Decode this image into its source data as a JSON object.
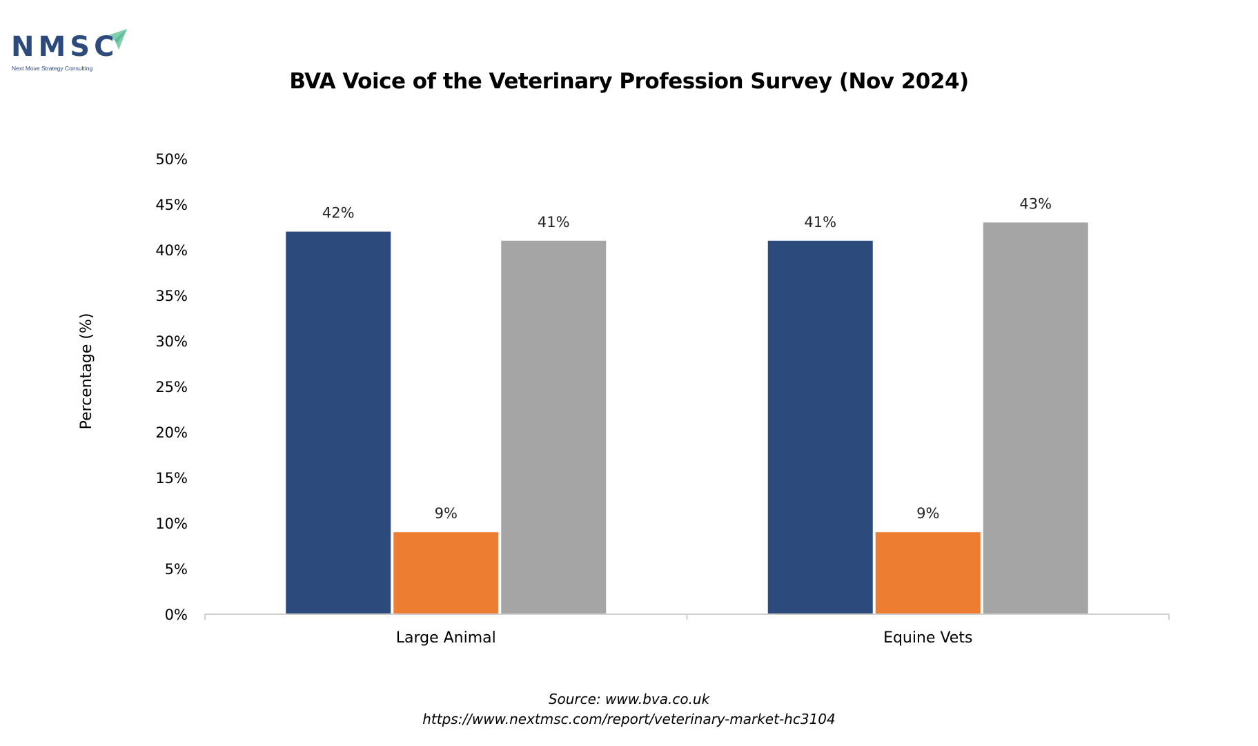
{
  "logo": {
    "text": "NMSC",
    "subtitle": "Next Move Strategy Consulting",
    "colors": {
      "text": "#2c4a7c",
      "arrow": "#7fcfae"
    }
  },
  "source": {
    "line1": "Source: www.bva.co.uk",
    "line2": "https://www.nextmsc.com/report/veterinary-market-hc3104"
  },
  "chart_data": {
    "type": "bar",
    "title": "BVA Voice of the Veterinary Profession Survey (Nov 2024)",
    "ylabel": "Percentage (%)",
    "xlabel": "",
    "categories": [
      "Large Animal",
      "Equine Vets"
    ],
    "ylim": [
      0,
      50
    ],
    "yticks": [
      0,
      5,
      10,
      15,
      20,
      25,
      30,
      35,
      40,
      45,
      50
    ],
    "ytick_labels": [
      "0%",
      "5%",
      "10%",
      "15%",
      "20%",
      "25%",
      "30%",
      "35%",
      "40%",
      "45%",
      "50%"
    ],
    "grid": false,
    "legend": "none",
    "series": [
      {
        "color": "#2d4a7d",
        "values": [
          42,
          41
        ],
        "labels": [
          "42%",
          "41%"
        ]
      },
      {
        "color": "#ed7d31",
        "values": [
          9,
          9
        ],
        "labels": [
          "9%",
          "9%"
        ]
      },
      {
        "color": "#a5a5a5",
        "values": [
          41,
          43
        ],
        "labels": [
          "41%",
          "43%"
        ]
      }
    ]
  }
}
